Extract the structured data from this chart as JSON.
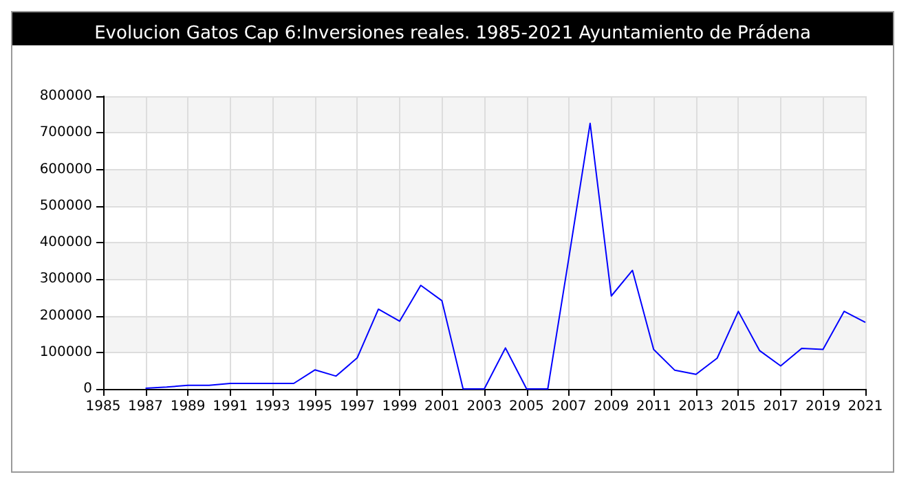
{
  "chart_data": {
    "type": "line",
    "title": "Evolucion Gatos Cap 6:Inversiones reales. 1985-2021 Ayuntamiento de Prádena",
    "x": [
      1987,
      1988,
      1989,
      1990,
      1991,
      1992,
      1993,
      1994,
      1995,
      1996,
      1997,
      1998,
      1999,
      2000,
      2001,
      2002,
      2003,
      2004,
      2005,
      2006,
      2007,
      2008,
      2009,
      2010,
      2011,
      2012,
      2013,
      2014,
      2015,
      2016,
      2017,
      2018,
      2019,
      2020,
      2021
    ],
    "series": [
      {
        "color": "#0000ff",
        "values": [
          2000,
          5000,
          10000,
          10000,
          15000,
          15000,
          15000,
          15000,
          52000,
          35000,
          85000,
          218000,
          185000,
          283000,
          241000,
          0,
          0,
          112000,
          0,
          0,
          360000,
          726000,
          254000,
          324000,
          108000,
          51000,
          40000,
          84000,
          212000,
          105000,
          63000,
          111000,
          108000,
          212000,
          182000
        ]
      }
    ],
    "xlim": [
      1985,
      2021
    ],
    "xticks": [
      1985,
      1987,
      1989,
      1991,
      1993,
      1995,
      1997,
      1999,
      2001,
      2003,
      2005,
      2007,
      2009,
      2011,
      2013,
      2015,
      2017,
      2019,
      2021
    ],
    "ylim": [
      0,
      800000
    ],
    "yticks": [
      0,
      100000,
      200000,
      300000,
      400000,
      500000,
      600000,
      700000,
      800000
    ],
    "grid": true,
    "marker": "none",
    "line_style": "solid"
  }
}
